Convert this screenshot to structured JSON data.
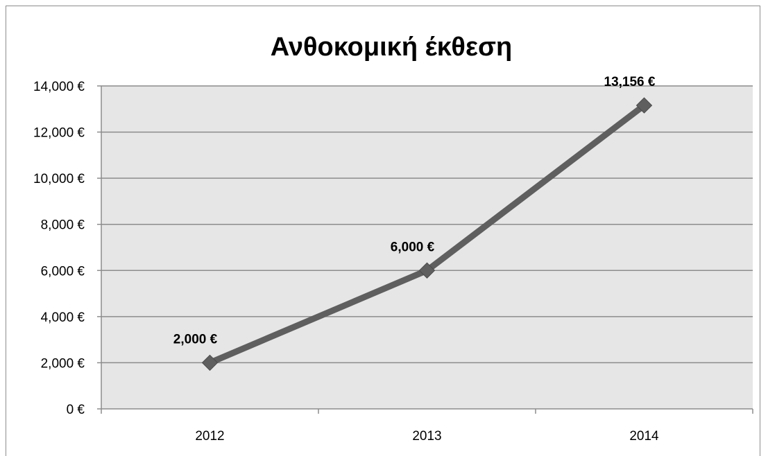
{
  "chart_data": {
    "type": "line",
    "title": "Ανθοκομική έκθεση",
    "categories": [
      "2012",
      "2013",
      "2014"
    ],
    "series": [
      {
        "values": [
          2000,
          6000,
          13156
        ],
        "data_labels": [
          "2,000 €",
          "6,000 €",
          "13,156 €"
        ]
      }
    ],
    "y_tick_values": [
      0,
      2000,
      4000,
      6000,
      8000,
      10000,
      12000,
      14000
    ],
    "y_tick_labels": [
      "0 €",
      "2,000 €",
      "4,000 €",
      "6,000 €",
      "8,000 €",
      "10,000 €",
      "12,000 €",
      "14,000 €"
    ],
    "ylim": [
      0,
      14000
    ],
    "grid": true,
    "legend": "none",
    "xlabel": "",
    "ylabel": "",
    "colors": {
      "line": "#5f5f5f",
      "plot_background": "#e6e6e6",
      "gridline": "#8c8c8c"
    }
  }
}
